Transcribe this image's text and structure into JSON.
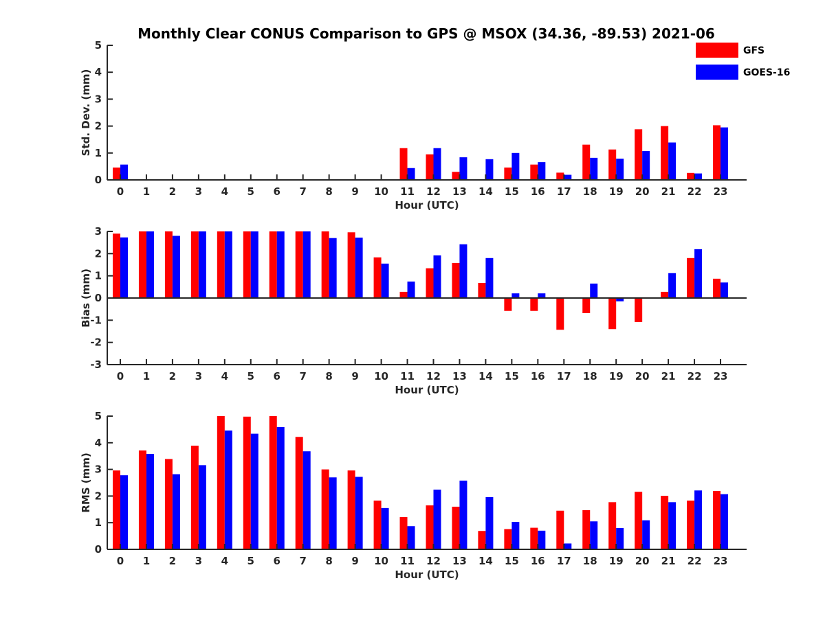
{
  "figure": {
    "title": "Monthly Clear CONUS Comparison to GPS @ MSOX (34.36, -89.53) 2021-06"
  },
  "legend": {
    "placement": "top-right",
    "entries": [
      {
        "name": "GFS",
        "color": "#ff0000"
      },
      {
        "name": "GOES-16",
        "color": "#0000ff"
      }
    ]
  },
  "chart_data": [
    {
      "type": "bar",
      "xlabel": "Hour (UTC)",
      "ylabel": "Std. Dev. (mm)",
      "ylim": [
        0,
        5
      ],
      "yticks": [
        0,
        1,
        2,
        3,
        4,
        5
      ],
      "categories": [
        "0",
        "1",
        "2",
        "3",
        "4",
        "5",
        "6",
        "7",
        "8",
        "9",
        "10",
        "11",
        "12",
        "13",
        "14",
        "15",
        "16",
        "17",
        "18",
        "19",
        "20",
        "21",
        "22",
        "23"
      ],
      "series": [
        {
          "name": "GFS",
          "color": "#ff0000",
          "values": [
            0.46,
            0,
            0,
            0,
            0,
            0,
            0,
            0,
            0,
            0,
            0,
            1.18,
            0.95,
            0.3,
            0,
            0.46,
            0.57,
            0.27,
            1.31,
            1.13,
            1.88,
            2.0,
            0.26,
            2.03
          ]
        },
        {
          "name": "GOES-16",
          "color": "#0000ff",
          "values": [
            0.57,
            0,
            0,
            0,
            0,
            0,
            0,
            0,
            0,
            0,
            0,
            0.44,
            1.18,
            0.84,
            0.77,
            1.0,
            0.66,
            0.19,
            0.82,
            0.79,
            1.07,
            1.39,
            0.24,
            1.95
          ]
        }
      ]
    },
    {
      "type": "bar",
      "xlabel": "Hour (UTC)",
      "ylabel": "Bias (mm)",
      "ylim": [
        -3,
        3
      ],
      "yticks": [
        -3,
        -2,
        -1,
        0,
        1,
        2,
        3
      ],
      "categories": [
        "0",
        "1",
        "2",
        "3",
        "4",
        "5",
        "6",
        "7",
        "8",
        "9",
        "10",
        "11",
        "12",
        "13",
        "14",
        "15",
        "16",
        "17",
        "18",
        "19",
        "20",
        "21",
        "22",
        "23"
      ],
      "series": [
        {
          "name": "GFS",
          "color": "#ff0000",
          "values": [
            2.9,
            3.0,
            3.0,
            3.0,
            3.0,
            3.0,
            3.0,
            3.0,
            3.0,
            2.96,
            1.83,
            0.28,
            1.34,
            1.58,
            0.68,
            -0.58,
            -0.58,
            -1.43,
            -0.68,
            -1.4,
            -1.08,
            0.28,
            1.8,
            0.87
          ]
        },
        {
          "name": "GOES-16",
          "color": "#0000ff",
          "values": [
            2.73,
            3.0,
            2.8,
            3.0,
            3.0,
            3.0,
            3.0,
            3.0,
            2.7,
            2.72,
            1.55,
            0.74,
            1.92,
            2.42,
            1.8,
            0.21,
            0.21,
            0.03,
            0.65,
            -0.15,
            0.02,
            1.12,
            2.2,
            0.7
          ]
        }
      ]
    },
    {
      "type": "bar",
      "xlabel": "Hour (UTC)",
      "ylabel": "RMS (mm)",
      "ylim": [
        0,
        5
      ],
      "yticks": [
        0,
        1,
        2,
        3,
        4,
        5
      ],
      "categories": [
        "0",
        "1",
        "2",
        "3",
        "4",
        "5",
        "6",
        "7",
        "8",
        "9",
        "10",
        "11",
        "12",
        "13",
        "14",
        "15",
        "16",
        "17",
        "18",
        "19",
        "20",
        "21",
        "22",
        "23"
      ],
      "series": [
        {
          "name": "GFS",
          "color": "#ff0000",
          "values": [
            2.96,
            3.71,
            3.39,
            3.89,
            5.0,
            4.98,
            5.0,
            4.22,
            3.0,
            2.96,
            1.83,
            1.21,
            1.65,
            1.6,
            0.69,
            0.76,
            0.81,
            1.45,
            1.47,
            1.77,
            2.16,
            2.01,
            1.83,
            2.19
          ]
        },
        {
          "name": "GOES-16",
          "color": "#0000ff",
          "values": [
            2.78,
            3.58,
            2.82,
            3.16,
            4.46,
            4.34,
            4.59,
            3.68,
            2.7,
            2.72,
            1.55,
            0.87,
            2.24,
            2.58,
            1.96,
            1.03,
            0.7,
            0.22,
            1.05,
            0.8,
            1.09,
            1.77,
            2.21,
            2.07
          ]
        }
      ]
    }
  ]
}
